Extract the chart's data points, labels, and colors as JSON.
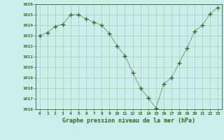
{
  "x": [
    0,
    1,
    2,
    3,
    4,
    5,
    6,
    7,
    8,
    9,
    10,
    11,
    12,
    13,
    14,
    15,
    16,
    17,
    18,
    19,
    20,
    21,
    22,
    23
  ],
  "y": [
    1023.0,
    1023.3,
    1023.9,
    1024.1,
    1025.0,
    1025.0,
    1024.6,
    1024.3,
    1024.0,
    1023.2,
    1022.0,
    1021.1,
    1019.5,
    1018.0,
    1017.1,
    1016.1,
    1018.4,
    1019.0,
    1020.4,
    1021.8,
    1023.4,
    1024.0,
    1025.1,
    1025.7
  ],
  "line_color": "#2d6a2d",
  "marker": "+",
  "marker_color": "#2d6a2d",
  "bg_color": "#cceeea",
  "grid_color": "#aaccbb",
  "xlabel": "Graphe pression niveau de la mer (hPa)",
  "xlabel_color": "#2d6a2d",
  "tick_color": "#2d6a2d",
  "ylim": [
    1016,
    1026
  ],
  "xlim": [
    -0.5,
    23.5
  ],
  "yticks": [
    1016,
    1017,
    1018,
    1019,
    1020,
    1021,
    1022,
    1023,
    1024,
    1025,
    1026
  ],
  "xtick_labels": [
    "0",
    "1",
    "2",
    "3",
    "4",
    "5",
    "6",
    "7",
    "8",
    "9",
    "10",
    "11",
    "12",
    "13",
    "14",
    "15",
    "16",
    "17",
    "18",
    "19",
    "20",
    "21",
    "22",
    "23"
  ],
  "spine_color": "#2d6a2d"
}
